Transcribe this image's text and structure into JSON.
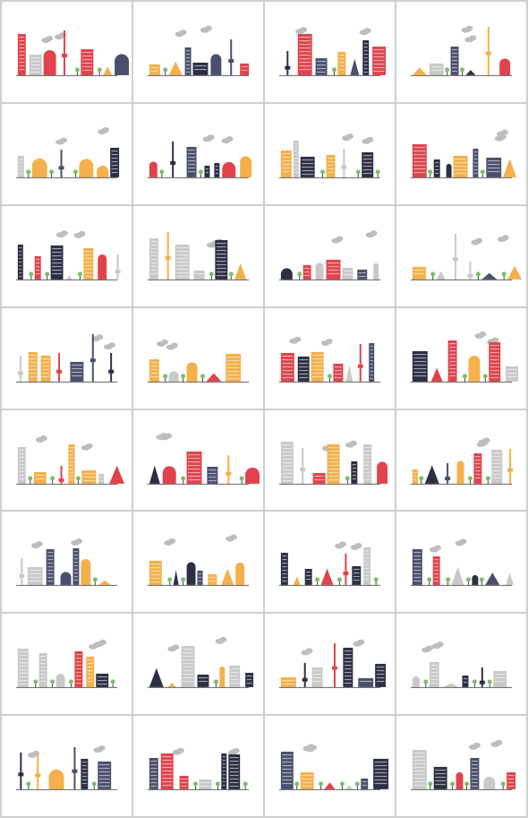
{
  "palette": {
    "navy": "#4b4f6e",
    "red": "#e0434b",
    "orange": "#f4b04a",
    "gray": "#c9c9c9",
    "dark": "#2c2f44",
    "tree": "#7bbf6a",
    "ground": "#3c3c3c",
    "cloud": "#bdbdbd"
  },
  "grid": {
    "columns": 4,
    "rows": 8
  },
  "tiles": [
    {
      "id": "skyline-1",
      "seed": 3
    },
    {
      "id": "skyline-2",
      "seed": 7
    },
    {
      "id": "skyline-3",
      "seed": 11
    },
    {
      "id": "skyline-4",
      "seed": 13
    },
    {
      "id": "skyline-5",
      "seed": 17
    },
    {
      "id": "skyline-6",
      "seed": 19
    },
    {
      "id": "skyline-7",
      "seed": 23
    },
    {
      "id": "skyline-8",
      "seed": 29
    },
    {
      "id": "skyline-9",
      "seed": 31
    },
    {
      "id": "skyline-10",
      "seed": 37
    },
    {
      "id": "skyline-11",
      "seed": 41
    },
    {
      "id": "skyline-12",
      "seed": 43
    },
    {
      "id": "skyline-13",
      "seed": 47
    },
    {
      "id": "skyline-14",
      "seed": 53
    },
    {
      "id": "skyline-15",
      "seed": 59
    },
    {
      "id": "skyline-16",
      "seed": 61
    },
    {
      "id": "skyline-17",
      "seed": 67
    },
    {
      "id": "skyline-18",
      "seed": 71
    },
    {
      "id": "skyline-19",
      "seed": 73
    },
    {
      "id": "skyline-20",
      "seed": 79
    },
    {
      "id": "skyline-21",
      "seed": 83
    },
    {
      "id": "skyline-22",
      "seed": 89
    },
    {
      "id": "skyline-23",
      "seed": 97
    },
    {
      "id": "skyline-24",
      "seed": 101
    },
    {
      "id": "skyline-25",
      "seed": 103
    },
    {
      "id": "skyline-26",
      "seed": 107
    },
    {
      "id": "skyline-27",
      "seed": 109
    },
    {
      "id": "skyline-28",
      "seed": 113
    },
    {
      "id": "skyline-29",
      "seed": 127
    },
    {
      "id": "skyline-30",
      "seed": 131
    },
    {
      "id": "skyline-31",
      "seed": 137
    },
    {
      "id": "skyline-32",
      "seed": 139
    }
  ]
}
